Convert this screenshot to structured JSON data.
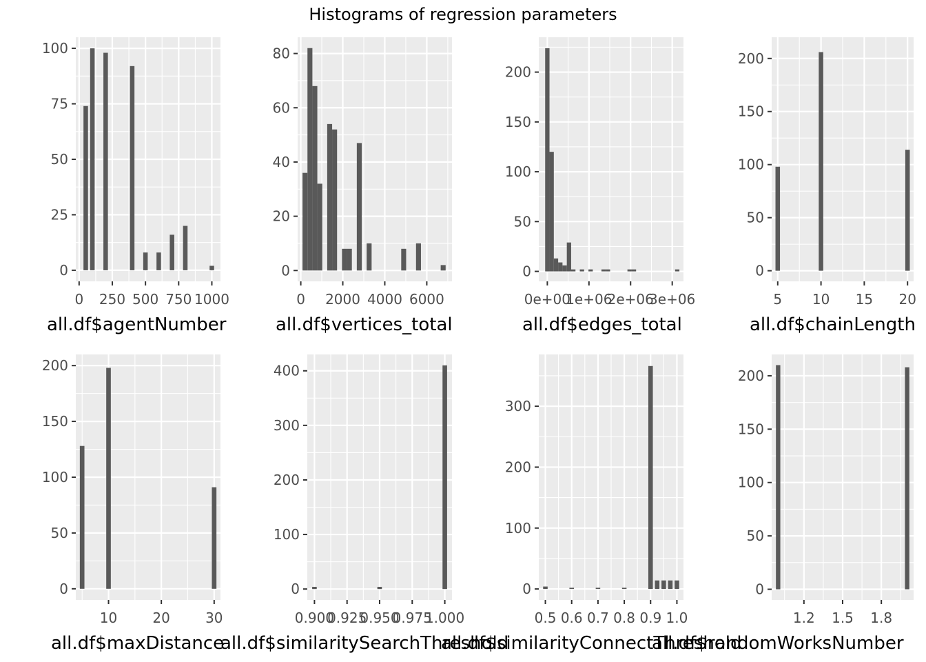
{
  "title": "Histograms of regression parameters",
  "chart_data": [
    {
      "type": "bar",
      "xlabel": "all.df$agentNumber",
      "xlim": [
        -25,
        1065
      ],
      "ylim": [
        -5,
        105
      ],
      "xticks": [
        {
          "v": 0,
          "label": "0"
        },
        {
          "v": 250,
          "label": "250"
        },
        {
          "v": 500,
          "label": "500"
        },
        {
          "v": 750,
          "label": "750"
        },
        {
          "v": 1000,
          "label": "1000"
        }
      ],
      "yticks": [
        {
          "v": 0,
          "label": "0"
        },
        {
          "v": 25,
          "label": "25"
        },
        {
          "v": 50,
          "label": "50"
        },
        {
          "v": 75,
          "label": "75"
        },
        {
          "v": 100,
          "label": "100"
        }
      ],
      "bin_width": 34,
      "bins": [
        {
          "x": 50,
          "y": 74
        },
        {
          "x": 100,
          "y": 100
        },
        {
          "x": 200,
          "y": 98
        },
        {
          "x": 400,
          "y": 92
        },
        {
          "x": 500,
          "y": 8
        },
        {
          "x": 600,
          "y": 8
        },
        {
          "x": 700,
          "y": 16
        },
        {
          "x": 800,
          "y": 20
        },
        {
          "x": 1000,
          "y": 2
        }
      ]
    },
    {
      "type": "bar",
      "xlabel": "all.df$vertices_total",
      "xlim": [
        -150,
        7200
      ],
      "ylim": [
        -4,
        86
      ],
      "xticks": [
        {
          "v": 0,
          "label": "0"
        },
        {
          "v": 2000,
          "label": "2000"
        },
        {
          "v": 4000,
          "label": "4000"
        },
        {
          "v": 6000,
          "label": "6000"
        }
      ],
      "yticks": [
        {
          "v": 0,
          "label": "0"
        },
        {
          "v": 20,
          "label": "20"
        },
        {
          "v": 40,
          "label": "40"
        },
        {
          "v": 60,
          "label": "60"
        },
        {
          "v": 80,
          "label": "80"
        }
      ],
      "bin_width": 235,
      "bins": [
        {
          "x": 200,
          "y": 36
        },
        {
          "x": 435,
          "y": 82
        },
        {
          "x": 670,
          "y": 68
        },
        {
          "x": 905,
          "y": 32
        },
        {
          "x": 1375,
          "y": 54
        },
        {
          "x": 1610,
          "y": 52
        },
        {
          "x": 2080,
          "y": 8
        },
        {
          "x": 2315,
          "y": 8
        },
        {
          "x": 2785,
          "y": 47
        },
        {
          "x": 3255,
          "y": 10
        },
        {
          "x": 4900,
          "y": 8
        },
        {
          "x": 5605,
          "y": 10
        },
        {
          "x": 6780,
          "y": 2
        }
      ]
    },
    {
      "type": "bar",
      "xlabel": "all.df$edges_total",
      "xlim": [
        -205000,
        3270000
      ],
      "ylim": [
        -10,
        235
      ],
      "xticks": [
        {
          "v": 0,
          "label": "0e+00"
        },
        {
          "v": 1000000,
          "label": "1e+06"
        },
        {
          "v": 2000000,
          "label": "2e+06"
        },
        {
          "v": 3000000,
          "label": "3e+06"
        }
      ],
      "yticks": [
        {
          "v": 0,
          "label": "0"
        },
        {
          "v": 50,
          "label": "50"
        },
        {
          "v": 100,
          "label": "100"
        },
        {
          "v": 150,
          "label": "150"
        },
        {
          "v": 200,
          "label": "200"
        }
      ],
      "bin_width": 104000,
      "bins": [
        {
          "x": 0,
          "y": 224
        },
        {
          "x": 104000,
          "y": 120
        },
        {
          "x": 208000,
          "y": 13
        },
        {
          "x": 312000,
          "y": 9
        },
        {
          "x": 416000,
          "y": 6
        },
        {
          "x": 520000,
          "y": 29
        },
        {
          "x": 624000,
          "y": 2
        },
        {
          "x": 832000,
          "y": 2
        },
        {
          "x": 1040000,
          "y": 2
        },
        {
          "x": 1352000,
          "y": 2
        },
        {
          "x": 1456000,
          "y": 2
        },
        {
          "x": 1976000,
          "y": 2
        },
        {
          "x": 2080000,
          "y": 2
        },
        {
          "x": 3120000,
          "y": 2
        }
      ]
    },
    {
      "type": "bar",
      "xlabel": "all.df$chainLength",
      "xlim": [
        4.3,
        20.7
      ],
      "ylim": [
        -10,
        220
      ],
      "xticks": [
        {
          "v": 5,
          "label": "5"
        },
        {
          "v": 10,
          "label": "10"
        },
        {
          "v": 15,
          "label": "15"
        },
        {
          "v": 20,
          "label": "20"
        }
      ],
      "yticks": [
        {
          "v": 0,
          "label": "0"
        },
        {
          "v": 50,
          "label": "50"
        },
        {
          "v": 100,
          "label": "100"
        },
        {
          "v": 150,
          "label": "150"
        },
        {
          "v": 200,
          "label": "200"
        }
      ],
      "bin_width": 0.52,
      "bins": [
        {
          "x": 5,
          "y": 98
        },
        {
          "x": 10,
          "y": 206
        },
        {
          "x": 20,
          "y": 114
        }
      ]
    },
    {
      "type": "bar",
      "xlabel": "all.df$maxDistance",
      "xlim": [
        3.8,
        31.2
      ],
      "ylim": [
        -10,
        210
      ],
      "xticks": [
        {
          "v": 10,
          "label": "10"
        },
        {
          "v": 20,
          "label": "20"
        },
        {
          "v": 30,
          "label": "30"
        }
      ],
      "yticks": [
        {
          "v": 0,
          "label": "0"
        },
        {
          "v": 50,
          "label": "50"
        },
        {
          "v": 100,
          "label": "100"
        },
        {
          "v": 150,
          "label": "150"
        },
        {
          "v": 200,
          "label": "200"
        }
      ],
      "bin_width": 0.87,
      "bins": [
        {
          "x": 5,
          "y": 128
        },
        {
          "x": 10,
          "y": 198
        },
        {
          "x": 30,
          "y": 91
        }
      ]
    },
    {
      "type": "bar",
      "xlabel": "all.df$similaritySearchThreshold",
      "xlim": [
        0.8945,
        1.0055
      ],
      "ylim": [
        -20,
        430
      ],
      "xticks": [
        {
          "v": 0.9,
          "label": "0.900"
        },
        {
          "v": 0.925,
          "label": "0.925"
        },
        {
          "v": 0.95,
          "label": "0.950"
        },
        {
          "v": 0.975,
          "label": "0.975"
        },
        {
          "v": 1.0,
          "label": "1.000"
        }
      ],
      "yticks": [
        {
          "v": 0,
          "label": "0"
        },
        {
          "v": 100,
          "label": "100"
        },
        {
          "v": 200,
          "label": "200"
        },
        {
          "v": 300,
          "label": "300"
        },
        {
          "v": 400,
          "label": "400"
        }
      ],
      "bin_width": 0.0035,
      "bins": [
        {
          "x": 0.9,
          "y": 4
        },
        {
          "x": 0.95,
          "y": 4
        },
        {
          "x": 1.0,
          "y": 410
        }
      ]
    },
    {
      "type": "bar",
      "xlabel": "all.df$similarityConnectThreshold",
      "xlim": [
        0.475,
        1.025
      ],
      "ylim": [
        -18,
        385
      ],
      "xticks": [
        {
          "v": 0.5,
          "label": "0.5"
        },
        {
          "v": 0.6,
          "label": "0.6"
        },
        {
          "v": 0.7,
          "label": "0.7"
        },
        {
          "v": 0.8,
          "label": "0.8"
        },
        {
          "v": 0.9,
          "label": "0.9"
        },
        {
          "v": 1.0,
          "label": "1.0"
        }
      ],
      "yticks": [
        {
          "v": 0,
          "label": "0"
        },
        {
          "v": 100,
          "label": "100"
        },
        {
          "v": 200,
          "label": "200"
        },
        {
          "v": 300,
          "label": "300"
        }
      ],
      "bin_width": 0.0172,
      "bins": [
        {
          "x": 0.5,
          "y": 4
        },
        {
          "x": 0.6,
          "y": 2
        },
        {
          "x": 0.7,
          "y": 2
        },
        {
          "x": 0.8,
          "y": 2
        },
        {
          "x": 0.9,
          "y": 366
        },
        {
          "x": 0.925,
          "y": 14
        },
        {
          "x": 0.95,
          "y": 14
        },
        {
          "x": 0.975,
          "y": 14
        },
        {
          "x": 1.0,
          "y": 14
        }
      ]
    },
    {
      "type": "bar",
      "xlabel": "all.df$randomWorksNumber",
      "xlim": [
        0.95,
        2.05
      ],
      "ylim": [
        -10,
        220
      ],
      "xticks": [
        {
          "v": 1.2,
          "label": "1.2"
        },
        {
          "v": 1.5,
          "label": "1.5"
        },
        {
          "v": 1.8,
          "label": "1.8"
        }
      ],
      "yticks": [
        {
          "v": 0,
          "label": "0"
        },
        {
          "v": 50,
          "label": "50"
        },
        {
          "v": 100,
          "label": "100"
        },
        {
          "v": 150,
          "label": "150"
        },
        {
          "v": 200,
          "label": "200"
        }
      ],
      "bin_width": 0.034,
      "bins": [
        {
          "x": 1,
          "y": 210
        },
        {
          "x": 2,
          "y": 208
        }
      ]
    }
  ]
}
